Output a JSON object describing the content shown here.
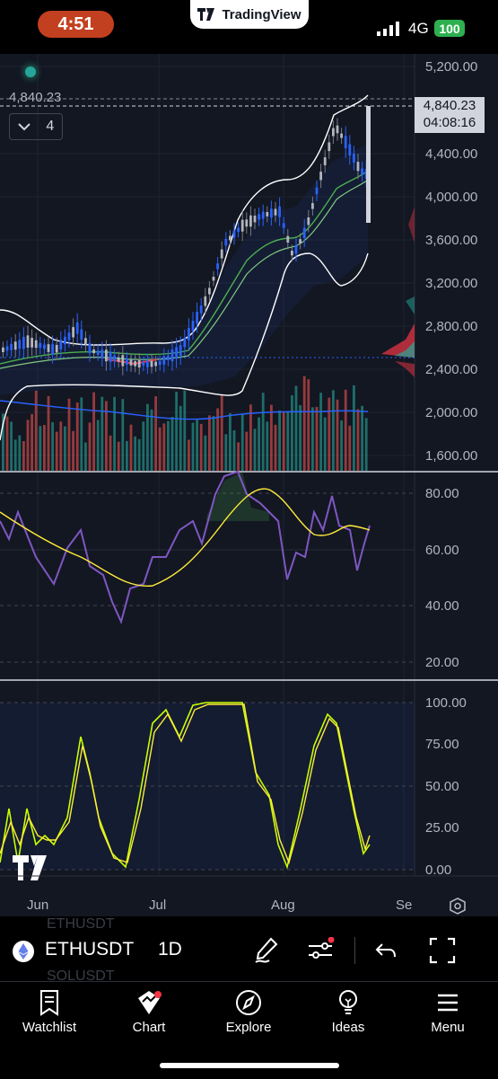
{
  "status": {
    "time": "4:51",
    "app_name": "TradingView",
    "network": "4G",
    "battery": "100"
  },
  "chart_header": {
    "last_price_label": "4,840.23",
    "indicators_count": "4"
  },
  "price_axis": {
    "ticks": [
      "5,200.00",
      "4,400.00",
      "4,000.00",
      "3,600.00",
      "3,200.00",
      "2,800.00",
      "2,400.00",
      "2,000.00",
      "1,600.00"
    ],
    "current_price": "4,840.23",
    "countdown": "04:08:16"
  },
  "rsi_axis": {
    "ticks": [
      "80.00",
      "60.00",
      "40.00",
      "20.00"
    ]
  },
  "stoch_axis": {
    "ticks": [
      "100.00",
      "75.00",
      "50.00",
      "25.00",
      "0.00"
    ]
  },
  "time_axis": {
    "ticks": [
      "Jun",
      "Jul",
      "Aug",
      "Se"
    ]
  },
  "toolbar": {
    "symbol": "ETHUSDT",
    "interval": "1D",
    "ghost_symbol_above": "ETHUSDT",
    "ghost_symbol_below": "SOLUSDT"
  },
  "bottom_nav": {
    "items": [
      {
        "label": "Watchlist",
        "icon": "bookmark-list-icon"
      },
      {
        "label": "Chart",
        "icon": "chart-icon"
      },
      {
        "label": "Explore",
        "icon": "compass-icon"
      },
      {
        "label": "Ideas",
        "icon": "lightbulb-icon"
      },
      {
        "label": "Menu",
        "icon": "hamburger-icon"
      }
    ]
  },
  "colors": {
    "background": "#131722",
    "up": "#2962ff",
    "down": "#787b86",
    "bollinger": "#ffffff",
    "ema_green": "#4caf50",
    "rsi": "#7e57c2",
    "rsi_ma": "#ffeb3b",
    "stoch_k": "#c6ff00",
    "stoch_d": "#ffeb3b",
    "accent_red": "#c2401f"
  }
}
